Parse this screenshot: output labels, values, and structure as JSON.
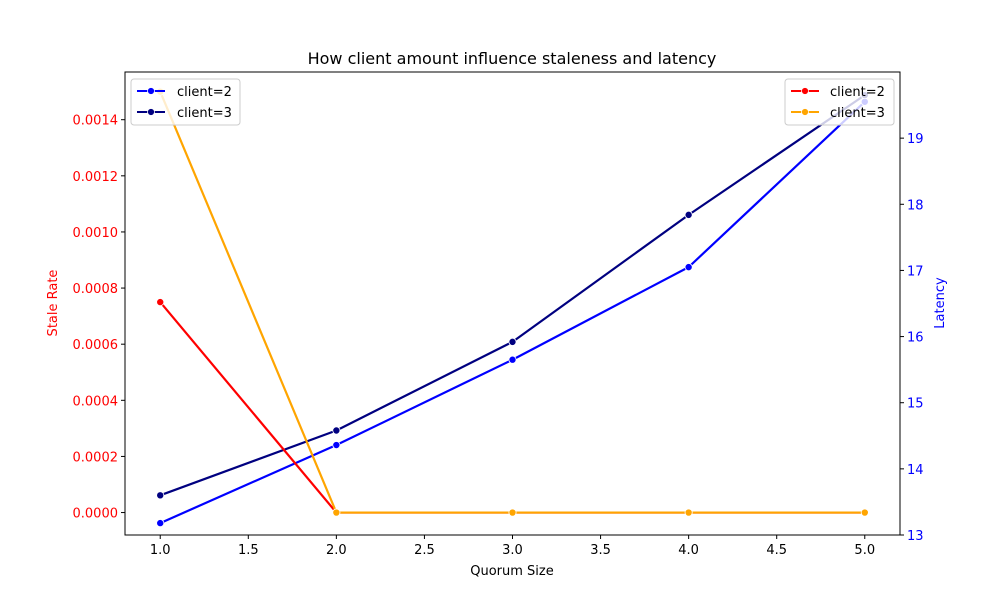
{
  "chart_data": {
    "type": "line",
    "title": "How client amount influence staleness and latency",
    "xlabel": "Quorum Size",
    "x": [
      1.0,
      2.0,
      3.0,
      4.0,
      5.0
    ],
    "xlim": [
      0.8,
      5.2
    ],
    "xticks": [
      "1.0",
      "1.5",
      "2.0",
      "2.5",
      "3.0",
      "3.5",
      "4.0",
      "4.5",
      "5.0"
    ],
    "grid": false,
    "left_axis": {
      "label": "Stale Rate",
      "color": "#ff0000",
      "ylim": [
        -8e-05,
        0.00157
      ],
      "ticks": [
        "0.0000",
        "0.0002",
        "0.0004",
        "0.0006",
        "0.0008",
        "0.0010",
        "0.0012",
        "0.0014"
      ],
      "legend_position": "top-right",
      "series": [
        {
          "name": "client=2",
          "color": "#ff0000",
          "values": [
            0.00075,
            0.0,
            0.0,
            0.0,
            0.0
          ]
        },
        {
          "name": "client=3",
          "color": "#ffa500",
          "values": [
            0.0015,
            0.0,
            0.0,
            0.0,
            0.0
          ]
        }
      ]
    },
    "right_axis": {
      "label": "Latency",
      "color": "#0000ff",
      "ylim": [
        13.0,
        20.0
      ],
      "ticks": [
        "13",
        "14",
        "15",
        "16",
        "17",
        "18",
        "19"
      ],
      "legend_position": "top-left",
      "series": [
        {
          "name": "client=2",
          "color": "#0000ff",
          "values": [
            13.18,
            14.36,
            15.65,
            17.05,
            19.55
          ]
        },
        {
          "name": "client=3",
          "color": "#000080",
          "values": [
            13.6,
            14.58,
            15.92,
            17.84,
            19.65
          ]
        }
      ]
    }
  }
}
